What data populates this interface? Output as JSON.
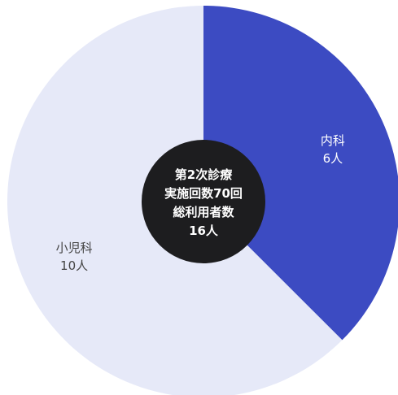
{
  "chart_data": {
    "type": "pie",
    "categories": [
      "内科",
      "小児科"
    ],
    "values": [
      6,
      10
    ],
    "units": "人",
    "colors": [
      "#3c4bc2",
      "#e6e9f8"
    ],
    "label_colors": [
      "#ffffff",
      "#444444"
    ],
    "labels": [
      {
        "name": "内科",
        "value_text": "6人"
      },
      {
        "name": "小児科",
        "value_text": "10人"
      }
    ],
    "center_text": [
      "第2次診療",
      "実施回数70回",
      "総利用者数",
      "16人"
    ],
    "title": "",
    "legend": "none"
  }
}
